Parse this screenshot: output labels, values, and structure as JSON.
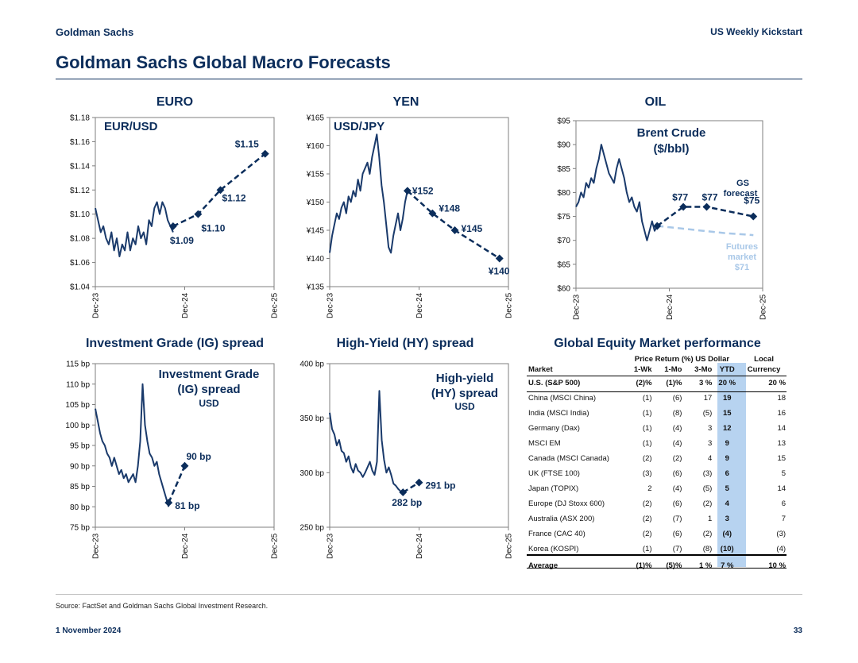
{
  "header": {
    "left": "Goldman Sachs",
    "right": "US Weekly Kickstart"
  },
  "title": "Goldman Sachs Global Macro Forecasts",
  "source": "Source: FactSet and Goldman Sachs Global Investment Research.",
  "footer": {
    "date": "1 November 2024",
    "page": "33"
  },
  "colors": {
    "navy": "#0b2d5b",
    "series": "#1a3a6b",
    "futures": "#a9c8e8",
    "ytd": "#b7d3f0"
  },
  "chart_data": [
    {
      "id": "euro",
      "type": "line",
      "title": "EURO",
      "label": "EUR/USD",
      "x_ticks": [
        "Dec-23",
        "Dec-24",
        "Dec-25"
      ],
      "y_ticks": [
        "$1.04",
        "$1.06",
        "$1.08",
        "$1.10",
        "$1.12",
        "$1.14",
        "$1.16",
        "$1.18"
      ],
      "ylim": [
        1.04,
        1.18
      ],
      "history": [
        1.105,
        1.095,
        1.085,
        1.09,
        1.08,
        1.075,
        1.085,
        1.07,
        1.08,
        1.065,
        1.075,
        1.07,
        1.085,
        1.07,
        1.08,
        1.075,
        1.09,
        1.08,
        1.085,
        1.075,
        1.095,
        1.09,
        1.105,
        1.11,
        1.1,
        1.11,
        1.105,
        1.095,
        1.09,
        1.085
      ],
      "forecast": [
        {
          "x": 0.87,
          "y": 1.09,
          "label": "$1.09"
        },
        {
          "x": 1.15,
          "y": 1.1,
          "label": "$1.10"
        },
        {
          "x": 1.4,
          "y": 1.12,
          "label": "$1.12"
        },
        {
          "x": 1.9,
          "y": 1.15,
          "label": "$1.15"
        }
      ]
    },
    {
      "id": "yen",
      "type": "line",
      "title": "YEN",
      "label": "USD/JPY",
      "x_ticks": [
        "Dec-23",
        "Dec-24",
        "Dec-25"
      ],
      "y_ticks": [
        "¥135",
        "¥140",
        "¥145",
        "¥150",
        "¥155",
        "¥160",
        "¥165"
      ],
      "ylim": [
        135,
        165
      ],
      "history": [
        141,
        144,
        146,
        148,
        147,
        149,
        150,
        148,
        151,
        150,
        152,
        151,
        154,
        152,
        155,
        156,
        157,
        155,
        158,
        160,
        162,
        158,
        153,
        150,
        146,
        142,
        141,
        144,
        146,
        148,
        145,
        147,
        150,
        152
      ],
      "forecast": [
        {
          "x": 0.87,
          "y": 152,
          "label": "¥152"
        },
        {
          "x": 1.15,
          "y": 148,
          "label": "¥148"
        },
        {
          "x": 1.4,
          "y": 145,
          "label": "¥145"
        },
        {
          "x": 1.9,
          "y": 140,
          "label": "¥140"
        }
      ]
    },
    {
      "id": "oil",
      "type": "line",
      "title": "OIL",
      "label": "Brent  Crude",
      "label2": "($/bbl)",
      "x_ticks": [
        "Dec-23",
        "Dec-24",
        "Dec-25"
      ],
      "y_ticks": [
        "$60",
        "$65",
        "$70",
        "$75",
        "$80",
        "$85",
        "$90",
        "$95"
      ],
      "ylim": [
        60,
        95
      ],
      "history": [
        77,
        78,
        80,
        79,
        82,
        81,
        83,
        82,
        85,
        87,
        90,
        88,
        86,
        84,
        83,
        82,
        85,
        87,
        85,
        83,
        80,
        78,
        79,
        77,
        76,
        78,
        74,
        72,
        70,
        72,
        74,
        72,
        73
      ],
      "forecast": [
        {
          "x": 0.87,
          "y": 73,
          "label": ""
        },
        {
          "x": 1.15,
          "y": 77,
          "label": "$77"
        },
        {
          "x": 1.4,
          "y": 77,
          "label": "$77"
        },
        {
          "x": 1.9,
          "y": 75,
          "label": "$75"
        }
      ],
      "futures": [
        73,
        72.7,
        72.4,
        72.1,
        71.8,
        71.5,
        71.3,
        71.1
      ],
      "gs_label": [
        "GS",
        "forecast"
      ],
      "futures_label": [
        "Futures",
        "market",
        "$71"
      ]
    },
    {
      "id": "ig",
      "type": "line",
      "title": "Investment Grade (IG) spread",
      "label": "Investment Grade",
      "label2": "(IG) spread",
      "label3": "USD",
      "x_ticks": [
        "Dec-23",
        "Dec-24",
        "Dec-25"
      ],
      "y_ticks": [
        "75 bp",
        "80 bp",
        "85 bp",
        "90 bp",
        "95 bp",
        "100 bp",
        "105 bp",
        "110 bp",
        "115 bp"
      ],
      "ylim": [
        75,
        115
      ],
      "history": [
        104,
        101,
        98,
        96,
        95,
        93,
        92,
        90,
        92,
        90,
        88,
        89,
        87,
        88,
        86,
        87,
        88,
        86,
        90,
        96,
        110,
        100,
        96,
        93,
        92,
        90,
        91,
        88,
        86,
        84,
        82,
        80
      ],
      "forecast": [
        {
          "x": 0.82,
          "y": 81,
          "label": "81 bp"
        },
        {
          "x": 1.0,
          "y": 90,
          "label": "90 bp"
        }
      ]
    },
    {
      "id": "hy",
      "type": "line",
      "title": "High-Yield (HY) spread",
      "label": "High-yield",
      "label2": "(HY) spread",
      "label3": "USD",
      "x_ticks": [
        "Dec-23",
        "Dec-24",
        "Dec-25"
      ],
      "y_ticks": [
        "250 bp",
        "300 bp",
        "350 bp",
        "400 bp"
      ],
      "ylim": [
        250,
        400
      ],
      "history": [
        355,
        340,
        335,
        325,
        330,
        320,
        318,
        310,
        315,
        305,
        300,
        308,
        302,
        300,
        296,
        300,
        305,
        310,
        302,
        298,
        310,
        375,
        330,
        312,
        300,
        305,
        298,
        290,
        288,
        285,
        283,
        282
      ],
      "forecast": [
        {
          "x": 0.82,
          "y": 282,
          "label": "282 bp"
        },
        {
          "x": 1.0,
          "y": 291,
          "label": "291 bp"
        }
      ]
    }
  ],
  "equity": {
    "title": "Global Equity Market performance",
    "group_header": "Price Return (%) US Dollar",
    "local_header_1": "Local",
    "columns": [
      "Market",
      "1-Wk",
      "1-Mo",
      "3-Mo",
      "YTD",
      "Currency"
    ],
    "rows": [
      [
        "U.S. (S&P 500)",
        "(2)%",
        "(1)%",
        "3 %",
        "20 %",
        "20 %"
      ],
      [
        "China (MSCI China)",
        "(1)",
        "(6)",
        "17",
        "19",
        "18"
      ],
      [
        "India (MSCI India)",
        "(1)",
        "(8)",
        "(5)",
        "15",
        "16"
      ],
      [
        "Germany (Dax)",
        "(1)",
        "(4)",
        "3",
        "12",
        "14"
      ],
      [
        "MSCI EM",
        "(1)",
        "(4)",
        "3",
        "9",
        "13"
      ],
      [
        "Canada (MSCI Canada)",
        "(2)",
        "(2)",
        "4",
        "9",
        "15"
      ],
      [
        "UK (FTSE 100)",
        "(3)",
        "(6)",
        "(3)",
        "6",
        "5"
      ],
      [
        "Japan (TOPIX)",
        "2",
        "(4)",
        "(5)",
        "5",
        "14"
      ],
      [
        "Europe (DJ Stoxx 600)",
        "(2)",
        "(6)",
        "(2)",
        "4",
        "6"
      ],
      [
        "Australia (ASX 200)",
        "(2)",
        "(7)",
        "1",
        "3",
        "7"
      ],
      [
        "France (CAC 40)",
        "(2)",
        "(6)",
        "(2)",
        "(4)",
        "(3)"
      ],
      [
        "Korea (KOSPI)",
        "(1)",
        "(7)",
        "(8)",
        "(10)",
        "(4)"
      ]
    ],
    "average": [
      "Average",
      "(1)%",
      "(5)%",
      "1 %",
      "7 %",
      "10 %"
    ]
  }
}
